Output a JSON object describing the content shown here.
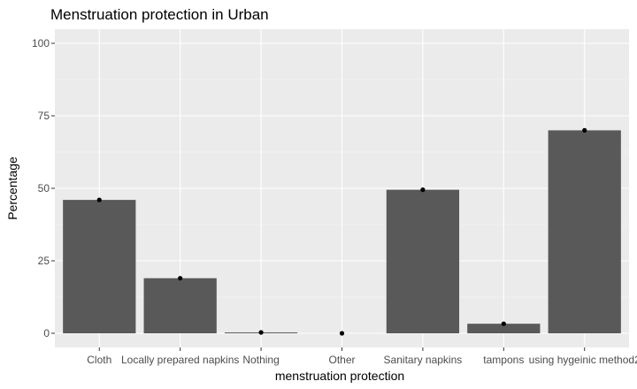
{
  "chart_data": {
    "type": "bar",
    "title": "Menstruation protection in Urban",
    "xlabel": "menstruation protection",
    "ylabel": "Percentage",
    "categories": [
      "Cloth",
      "Locally prepared napkins",
      "Nothing",
      "Other",
      "Sanitary napkins",
      "tampons",
      "using hygeinic method2"
    ],
    "values": [
      46,
      19,
      0.3,
      0,
      49.5,
      3.3,
      70
    ],
    "ylim": [
      0,
      100
    ],
    "yticks": [
      "0",
      "25",
      "50",
      "75",
      "100"
    ],
    "grid": true,
    "point_markers": true,
    "colors": {
      "panel_background": "#ebebeb",
      "grid_major": "#ffffff",
      "bar_fill": "#595959",
      "point": "#000000"
    }
  }
}
